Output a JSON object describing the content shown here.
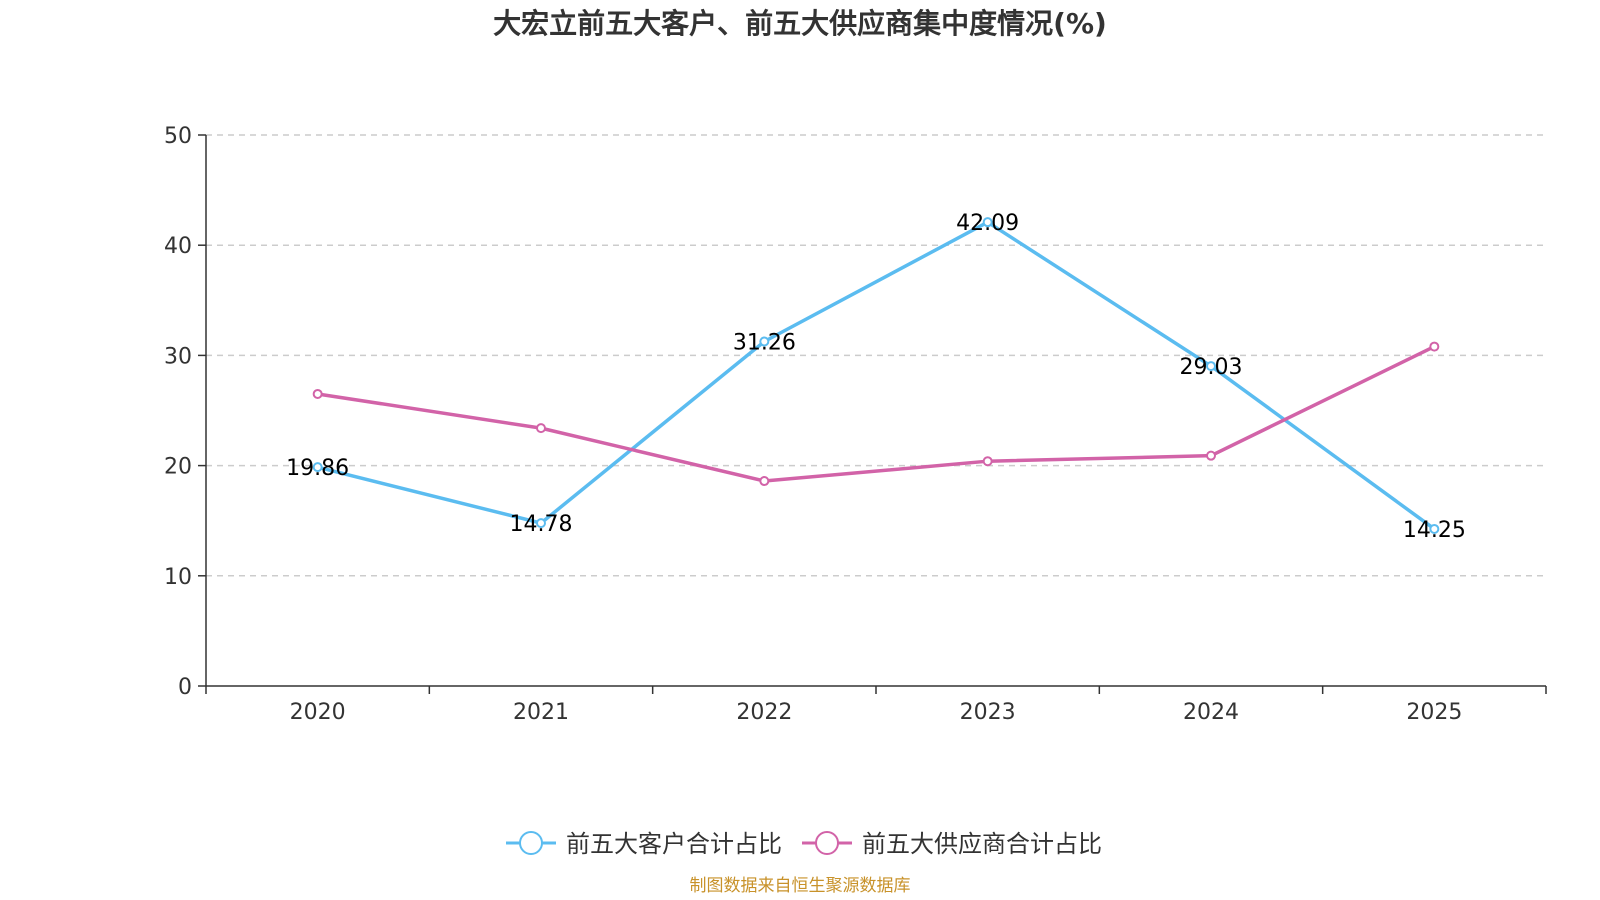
{
  "chart_data": {
    "type": "line",
    "title": "大宏立前五大客户、前五大供应商集中度情况(%)",
    "categories": [
      "2020",
      "2021",
      "2022",
      "2023",
      "2024",
      "2025"
    ],
    "ylim": [
      0,
      50
    ],
    "yticks": [
      0,
      10,
      20,
      30,
      40,
      50
    ],
    "grid": true,
    "series": [
      {
        "name": "前五大客户合计占比",
        "color": "#5bbcf0",
        "values": [
          19.86,
          14.78,
          31.26,
          42.09,
          29.03,
          14.25
        ],
        "labels": [
          "19.86",
          "14.78",
          "31.26",
          "42.09",
          "29.03",
          "14.25"
        ]
      },
      {
        "name": "前五大供应商合计占比",
        "color": "#d263a8",
        "values": [
          26.5,
          23.4,
          18.6,
          20.4,
          20.9,
          30.8
        ],
        "labels": []
      }
    ],
    "legend_position": "bottom-center"
  },
  "source": {
    "text": "制图数据来自恒生聚源数据库",
    "color": "#c8922a"
  }
}
